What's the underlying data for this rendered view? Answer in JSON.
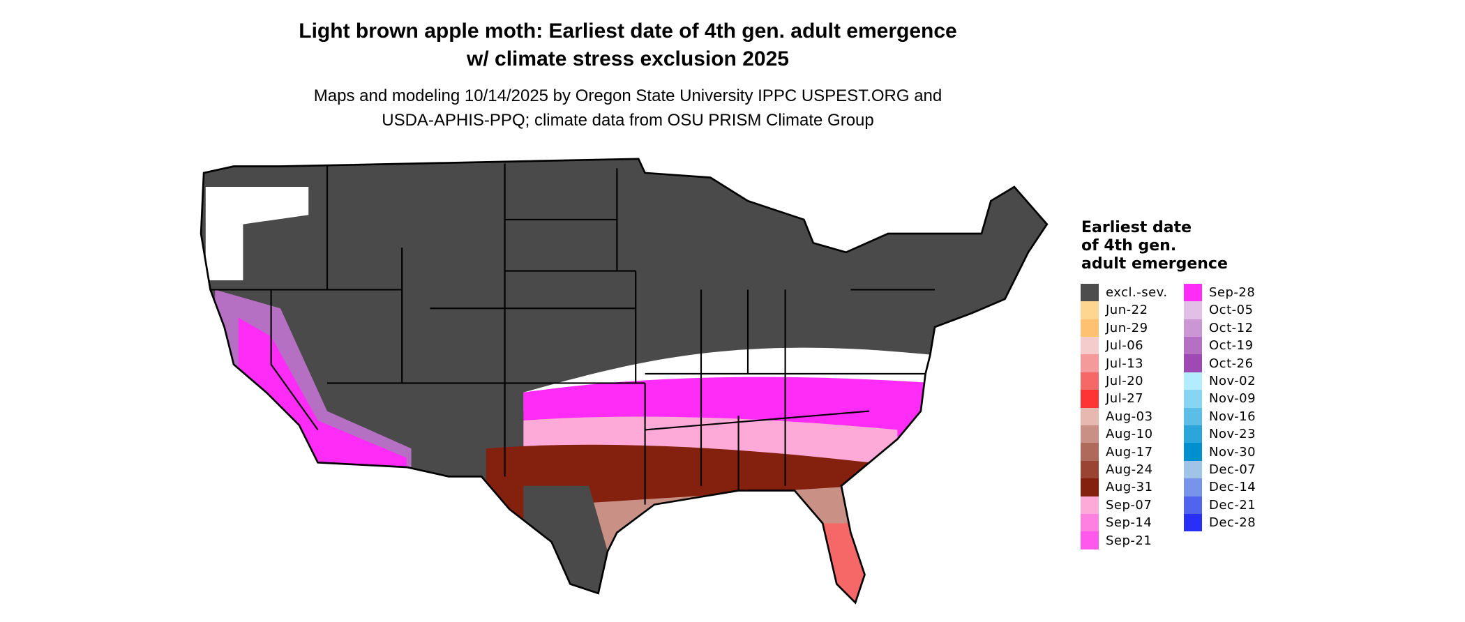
{
  "title": {
    "line1": "Light brown apple moth: Earliest date of 4th gen. adult emergence",
    "line2": "w/ climate stress exclusion 2025"
  },
  "subtitle": {
    "line1": "Maps and modeling 10/14/2025 by Oregon State University IPPC USPEST.ORG and",
    "line2": "USDA-APHIS-PPQ; climate data from OSU PRISM Climate Group"
  },
  "map": {
    "region": "Contiguous United States",
    "excluded_color": "#4a4a4a",
    "no_emergence_color": "#ffffff",
    "border_color": "#000000"
  },
  "legend": {
    "title_lines": [
      "Earliest date",
      "of 4th gen.",
      "adult emergence"
    ],
    "items": [
      {
        "label": "excl.-sev.",
        "color": "#4d4d4d"
      },
      {
        "label": "Jun-22",
        "color": "#fed68f"
      },
      {
        "label": "Jun-29",
        "color": "#fec172"
      },
      {
        "label": "Jul-06",
        "color": "#f4cccc"
      },
      {
        "label": "Jul-13",
        "color": "#f49a9a"
      },
      {
        "label": "Jul-20",
        "color": "#f66868"
      },
      {
        "label": "Jul-27",
        "color": "#fe3434"
      },
      {
        "label": "Aug-03",
        "color": "#e6b8b0"
      },
      {
        "label": "Aug-10",
        "color": "#c99085"
      },
      {
        "label": "Aug-17",
        "color": "#b06a5c"
      },
      {
        "label": "Aug-24",
        "color": "#9a4534"
      },
      {
        "label": "Aug-31",
        "color": "#84200e"
      },
      {
        "label": "Sep-07",
        "color": "#feaad8"
      },
      {
        "label": "Sep-14",
        "color": "#fe80e0"
      },
      {
        "label": "Sep-21",
        "color": "#fe58ec"
      },
      {
        "label": "Sep-28",
        "color": "#fe2cf6"
      },
      {
        "label": "Oct-05",
        "color": "#e2bfe6"
      },
      {
        "label": "Oct-12",
        "color": "#cb96d4"
      },
      {
        "label": "Oct-19",
        "color": "#b570c4"
      },
      {
        "label": "Oct-26",
        "color": "#9f4ab4"
      },
      {
        "label": "Nov-02",
        "color": "#b3ecfe"
      },
      {
        "label": "Nov-09",
        "color": "#87d5f2"
      },
      {
        "label": "Nov-16",
        "color": "#5cbde6"
      },
      {
        "label": "Nov-23",
        "color": "#2ca6da"
      },
      {
        "label": "Nov-30",
        "color": "#0090d0"
      },
      {
        "label": "Dec-07",
        "color": "#a0c4e8"
      },
      {
        "label": "Dec-14",
        "color": "#7894ea"
      },
      {
        "label": "Dec-21",
        "color": "#5064ee"
      },
      {
        "label": "Dec-28",
        "color": "#2830f8"
      }
    ]
  }
}
